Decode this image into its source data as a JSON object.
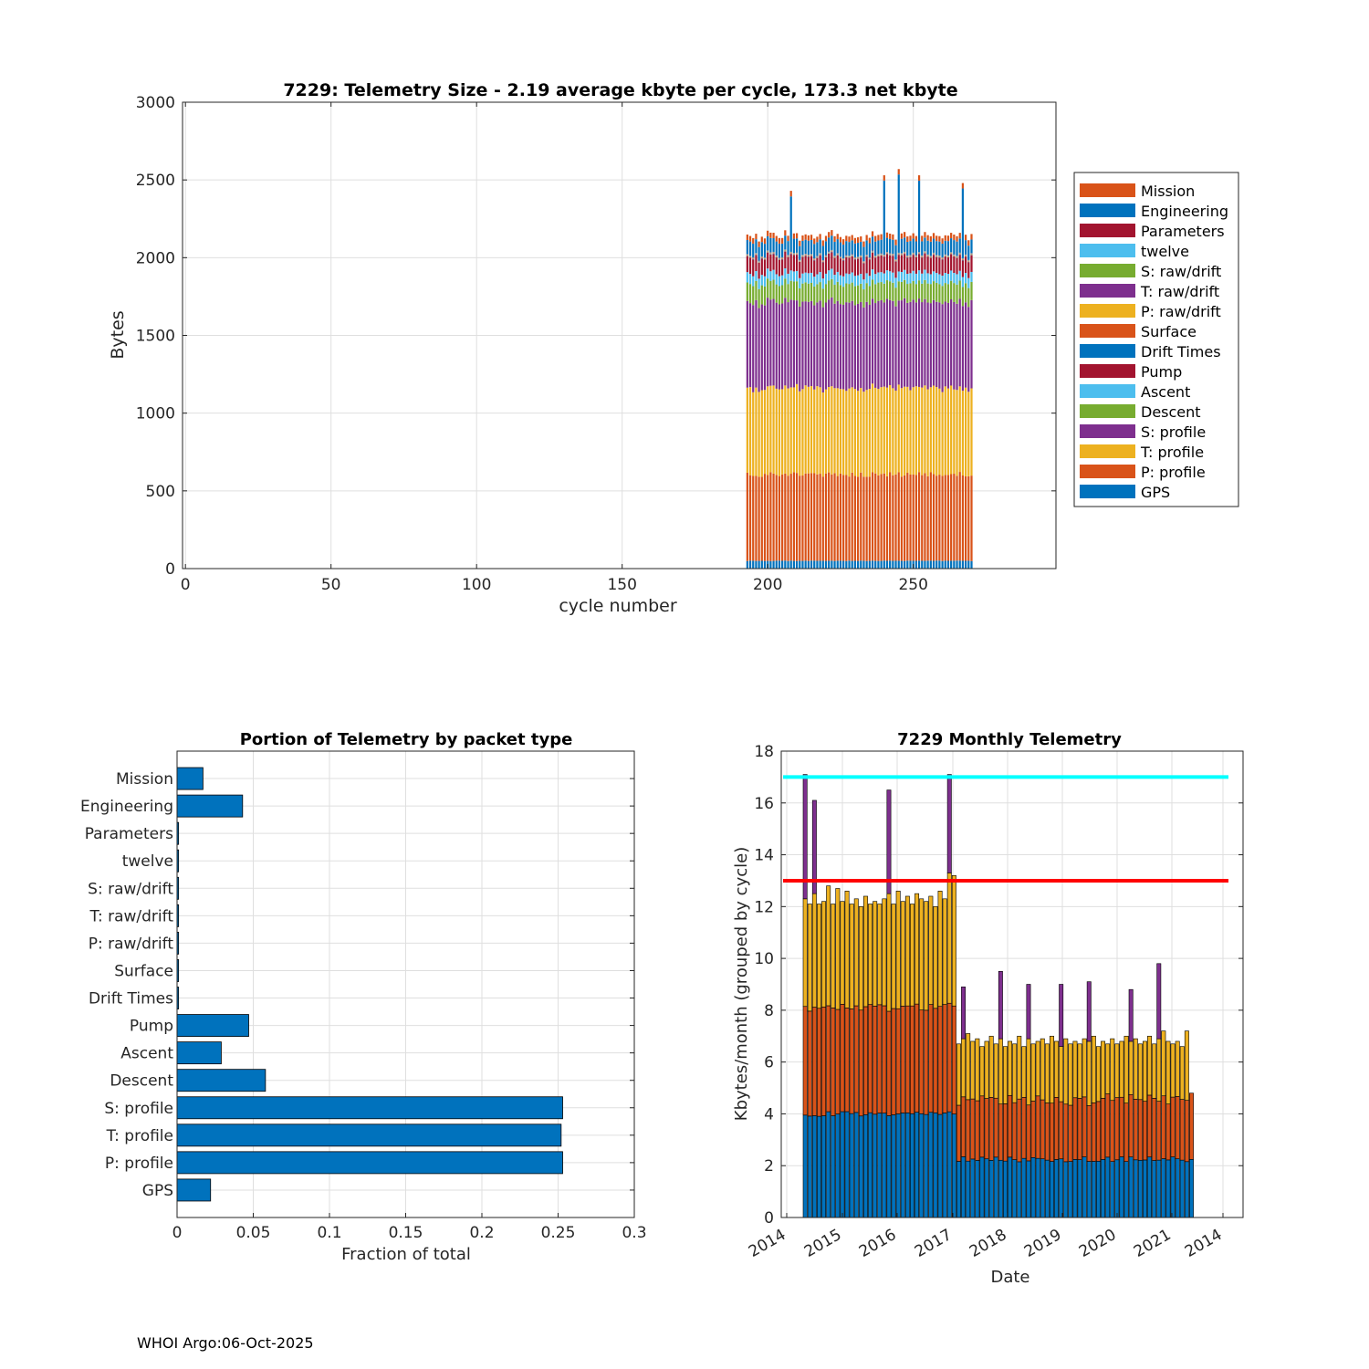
{
  "footer": "WHOI Argo:06-Oct-2025",
  "colors": {
    "GPS": "#0072BD",
    "P: profile": "#D95319",
    "T: profile": "#EDB120",
    "S: profile": "#7E2F8E",
    "Descent": "#77AC30",
    "Ascent": "#4DBEEE",
    "Pump": "#A2142F",
    "Drift Times": "#0072BD",
    "Surface": "#D95319",
    "P: raw/drift": "#EDB120",
    "T: raw/drift": "#7E2F8E",
    "S: raw/drift": "#77AC30",
    "twelve": "#4DBEEE",
    "Parameters": "#A2142F",
    "Engineering": "#0072BD",
    "Mission": "#D95319",
    "cyan_line": "#00FFFF",
    "red_line": "#FF0000"
  },
  "chart_data": [
    {
      "type": "bar",
      "stacked": true,
      "title": "7229: Telemetry Size - 2.19 average kbyte per cycle,  173.3 net kbyte",
      "xlabel": "cycle number",
      "ylabel": "Bytes",
      "xlim": [
        -1,
        299
      ],
      "ylim": [
        0,
        3000
      ],
      "xticks": [
        0,
        50,
        100,
        150,
        200,
        250
      ],
      "yticks": [
        0,
        500,
        1000,
        1500,
        2000,
        2500,
        3000
      ],
      "grid": true,
      "legend_position": "right",
      "legend": [
        "Mission",
        "Engineering",
        "Parameters",
        "twelve",
        "S: raw/drift",
        "T: raw/drift",
        "P: raw/drift",
        "Surface",
        "Drift Times",
        "Pump",
        "Ascent",
        "Descent",
        "S: profile",
        "T: profile",
        "P: profile",
        "GPS"
      ],
      "stack_order": [
        "GPS",
        "P: profile",
        "T: profile",
        "S: profile",
        "Descent",
        "Ascent",
        "Pump",
        "Drift Times",
        "Surface",
        "P: raw/drift",
        "T: raw/drift",
        "S: raw/drift",
        "twelve",
        "Parameters",
        "Engineering",
        "Mission"
      ],
      "cycles": [
        193,
        270
      ],
      "typical_segments": {
        "GPS": 50,
        "P: profile": 555,
        "T: profile": 555,
        "S: profile": 555,
        "Descent": 120,
        "Ascent": 65,
        "Pump": 105,
        "Drift Times": 2,
        "Surface": 2,
        "P: raw/drift": 2,
        "T: raw/drift": 2,
        "S: raw/drift": 2,
        "twelve": 2,
        "Parameters": 2,
        "Engineering": 90,
        "Mission": 35
      },
      "peak_cycles": [
        {
          "cycle": 208,
          "total": 2430
        },
        {
          "cycle": 240,
          "total": 2530
        },
        {
          "cycle": 245,
          "total": 2570
        },
        {
          "cycle": 252,
          "total": 2530
        },
        {
          "cycle": 267,
          "total": 2480
        }
      ]
    },
    {
      "type": "barh",
      "title": "Portion of Telemetry by packet type",
      "xlabel": "Fraction of total",
      "xlim": [
        0,
        0.3
      ],
      "xticks": [
        0,
        0.05,
        0.1,
        0.15,
        0.2,
        0.25,
        0.3
      ],
      "xticklabels": [
        "0",
        "0.05",
        "0.1",
        "0.15",
        "0.2",
        "0.25",
        "0.3"
      ],
      "grid": true,
      "categories": [
        "Mission",
        "Engineering",
        "Parameters",
        "twelve",
        "S: raw/drift",
        "T: raw/drift",
        "P: raw/drift",
        "Surface",
        "Drift Times",
        "Pump",
        "Ascent",
        "Descent",
        "S: profile",
        "T: profile",
        "P: profile",
        "GPS"
      ],
      "values": [
        0.017,
        0.043,
        0.001,
        0.001,
        0.001,
        0.001,
        0.001,
        0.001,
        0.001,
        0.047,
        0.029,
        0.058,
        0.253,
        0.252,
        0.253,
        0.022
      ]
    },
    {
      "type": "bar",
      "stacked": true,
      "title": "7229 Monthly Telemetry",
      "xlabel": "Date",
      "ylabel": "Kbytes/month (grouped by cycle)",
      "ylim": [
        0,
        18
      ],
      "yticks": [
        0,
        2,
        4,
        6,
        8,
        10,
        12,
        14,
        16,
        18
      ],
      "xticklabels": [
        "2014",
        "2015",
        "2016",
        "2017",
        "2018",
        "2019",
        "2020",
        "2021",
        "2014"
      ],
      "grid": true,
      "hlines": [
        {
          "y": 17,
          "color": "cyan_line"
        },
        {
          "y": 13,
          "color": "red_line"
        }
      ],
      "months_start": "2014-07",
      "series_order": [
        "blue",
        "orange",
        "yellow",
        "purple"
      ],
      "monthly_totals_phase1": [
        12.3,
        12.1,
        12.5,
        12.1,
        12.2,
        12.8,
        12.1,
        12.7,
        12.2,
        12.6,
        12.1,
        12.3,
        12.0,
        12.4,
        12.1,
        12.2,
        12.1,
        12.3,
        12.5,
        12.1,
        12.6,
        12.2,
        12.4,
        12.1,
        12.5,
        12.3,
        12.2,
        12.4,
        12.0,
        12.6,
        12.3,
        13.3,
        13.2
      ],
      "monthly_totals_phase2": [
        6.7,
        6.9,
        7.1,
        6.8,
        6.9,
        6.6,
        6.8,
        7.0,
        6.7,
        6.9,
        6.6,
        6.8,
        6.7,
        7.0,
        6.6,
        6.9,
        6.7,
        6.8,
        6.9,
        6.7,
        7.0,
        6.8,
        6.6,
        6.9,
        6.7,
        6.8,
        6.7,
        6.9,
        6.8,
        7.0,
        6.6,
        6.8,
        6.7,
        6.9,
        6.7,
        6.8,
        7.0,
        6.8,
        6.9,
        6.7,
        6.8,
        7.0,
        6.7,
        6.9,
        7.2,
        6.8,
        6.7,
        6.8,
        6.6,
        7.2,
        4.8
      ],
      "spikes": [
        {
          "month_index": 0,
          "total": 17.1
        },
        {
          "month_index": 2,
          "total": 16.1
        },
        {
          "month_index": 18,
          "total": 16.5
        },
        {
          "month_index": 31,
          "total": 17.1
        },
        {
          "month_index": 34,
          "total": 8.9
        },
        {
          "month_index": 42,
          "total": 9.5
        },
        {
          "month_index": 48,
          "total": 9.0
        },
        {
          "month_index": 55,
          "total": 9.0
        },
        {
          "month_index": 61,
          "total": 9.1
        },
        {
          "month_index": 70,
          "total": 8.8
        },
        {
          "month_index": 76,
          "total": 9.8
        }
      ]
    }
  ]
}
